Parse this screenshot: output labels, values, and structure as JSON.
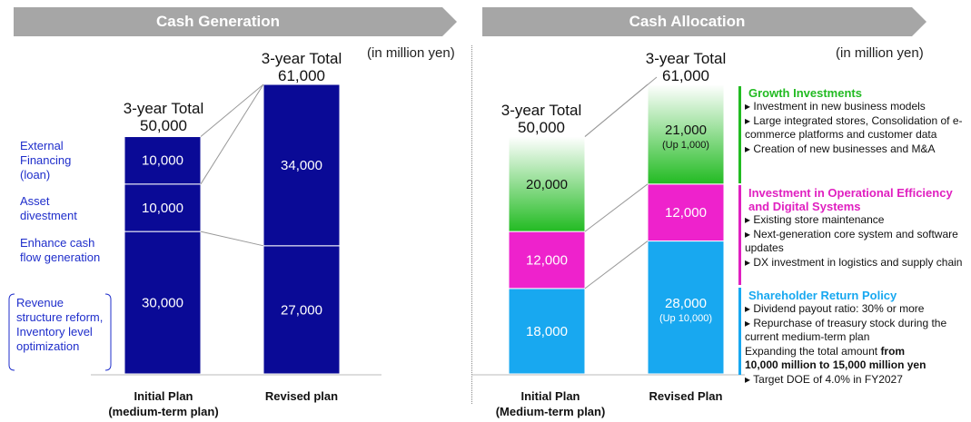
{
  "left": {
    "header": "Cash Generation",
    "unit": "(in million yen)",
    "totals": [
      {
        "line1": "3-year Total",
        "line2": "50,000"
      },
      {
        "line1": "3-year Total",
        "line2": "61,000"
      }
    ],
    "side_labels": [
      "External Financing (loan)",
      "Asset divestment",
      "Enhance cash flow generation",
      "Revenue structure reform, Inventory level optimization"
    ]
  },
  "right": {
    "header": "Cash Allocation",
    "unit": "(in million yen)",
    "totals": [
      {
        "line1": "3-year Total",
        "line2": "50,000"
      },
      {
        "line1": "3-year Total",
        "line2": "61,000"
      }
    ],
    "groups": [
      {
        "title": "Growth Investments",
        "color": "#22bb22",
        "bullets": [
          "Investment in new business models",
          "Large integrated stores, Consolidation of e-commerce platforms and customer data",
          "Creation of new businesses and M&A"
        ]
      },
      {
        "title": "Investment in Operational Efficiency and Digital Systems",
        "color": "#e020c0",
        "bullets": [
          "Existing store maintenance",
          "Next-generation core system and software updates",
          "DX investment in logistics and supply chain"
        ]
      },
      {
        "title": "Shareholder Return Policy",
        "color": "#18a8f0",
        "bullets": [
          "Dividend payout ratio: 30% or more",
          "Repurchase of treasury stock during the current medium-term plan"
        ],
        "extra_plain": "Expanding the total amount ",
        "extra_bold_1": "from",
        "extra_bold_2": "10,000 million to 15,000 million yen",
        "last_bullet": "Target DOE of 4.0% in FY2027"
      }
    ]
  },
  "chart_data": [
    {
      "type": "bar",
      "title": "Cash Generation",
      "categories": [
        "Initial Plan\n(medium-term plan)",
        "Revised plan"
      ],
      "series": [
        {
          "name": "Revenue structure reform, Inventory level optimization",
          "values": [
            30000,
            null
          ],
          "labels": [
            "30,000",
            ""
          ]
        },
        {
          "name": "Enhance cash flow generation",
          "values": [
            null,
            27000
          ],
          "labels": [
            "",
            "27,000"
          ]
        },
        {
          "name": "Asset divestment",
          "values": [
            10000,
            null
          ],
          "labels": [
            "10,000",
            ""
          ]
        },
        {
          "name": "External Financing (loan)",
          "values": [
            10000,
            34000
          ],
          "labels": [
            "10,000",
            "34,000"
          ]
        }
      ],
      "totals": [
        50000,
        61000
      ],
      "colors": {
        "bar": "#0a0a96"
      }
    },
    {
      "type": "bar",
      "title": "Cash Allocation",
      "categories": [
        "Initial Plan\n(Medium-term plan)",
        "Revised Plan"
      ],
      "series": [
        {
          "name": "Shareholder Return Policy",
          "values": [
            18000,
            28000
          ],
          "labels": [
            "18,000",
            "28,000"
          ],
          "sublabels": [
            "",
            "(Up 10,000)"
          ],
          "color": "#18a8f0"
        },
        {
          "name": "Investment in Operational Efficiency and Digital Systems",
          "values": [
            12000,
            12000
          ],
          "labels": [
            "12,000",
            "12,000"
          ],
          "sublabels": [
            "",
            ""
          ],
          "color": "#ee22cc"
        },
        {
          "name": "Growth Investments",
          "values": [
            20000,
            21000
          ],
          "labels": [
            "20,000",
            "21,000"
          ],
          "sublabels": [
            "",
            "(Up 1,000)"
          ],
          "color": "#22bb22"
        }
      ],
      "totals": [
        50000,
        61000
      ]
    }
  ]
}
